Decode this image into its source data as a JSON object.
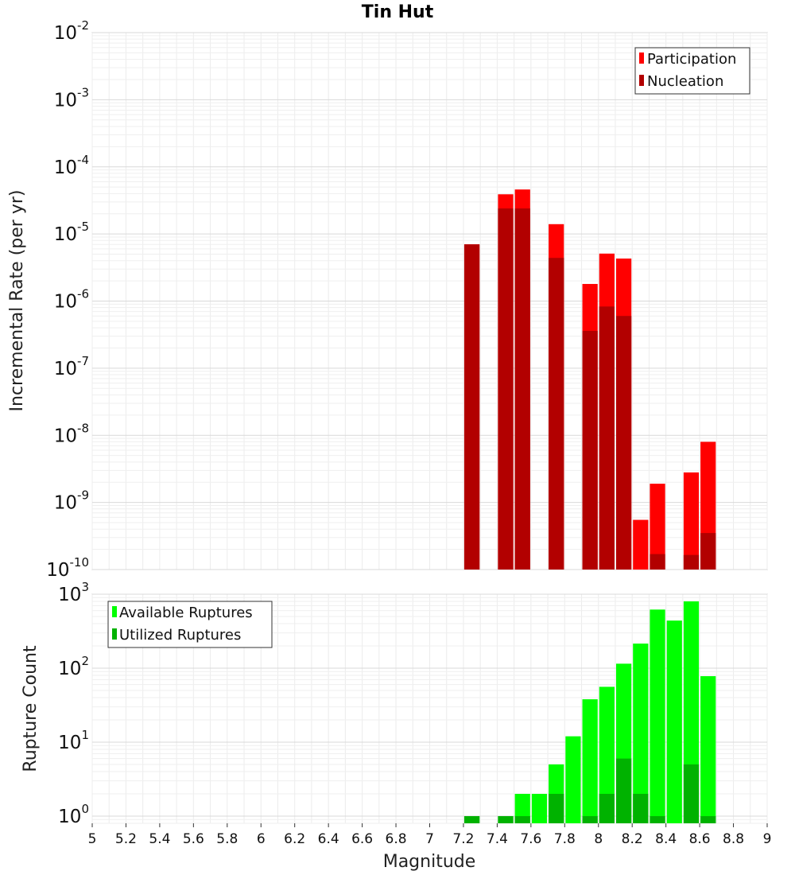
{
  "chart_data": [
    {
      "type": "bar",
      "title": "Tin Hut",
      "xlabel": "Magnitude",
      "ylabel": "Incremental Rate (per yr)",
      "yscale": "log",
      "ylim": [
        1e-10,
        0.01
      ],
      "xlim": [
        5,
        9
      ],
      "grid": true,
      "legend_position": "top-right",
      "y_ticks": [
        {
          "base": "10",
          "exp": "-2",
          "value": 0.01
        },
        {
          "base": "10",
          "exp": "-3",
          "value": 0.001
        },
        {
          "base": "10",
          "exp": "-4",
          "value": 0.0001
        },
        {
          "base": "10",
          "exp": "-5",
          "value": 1e-05
        },
        {
          "base": "10",
          "exp": "-6",
          "value": 1e-06
        },
        {
          "base": "10",
          "exp": "-7",
          "value": 1e-07
        },
        {
          "base": "10",
          "exp": "-8",
          "value": 1e-08
        },
        {
          "base": "10",
          "exp": "-9",
          "value": 1e-09
        },
        {
          "base": "10",
          "exp": "-10",
          "value": 1e-10
        }
      ],
      "series": [
        {
          "name": "Participation",
          "color": "#ff0000",
          "x": [
            7.25,
            7.45,
            7.55,
            7.75,
            7.95,
            8.05,
            8.15,
            8.25,
            8.35,
            8.55,
            8.65
          ],
          "values": [
            7e-06,
            3.9e-05,
            4.6e-05,
            1.4e-05,
            1.8e-06,
            5.1e-06,
            4.3e-06,
            5.5e-10,
            1.9e-09,
            2.8e-09,
            8e-09
          ]
        },
        {
          "name": "Nucleation",
          "color": "#b20000",
          "x": [
            7.25,
            7.45,
            7.55,
            7.75,
            7.95,
            8.05,
            8.15,
            8.35,
            8.55,
            8.65
          ],
          "values": [
            7e-06,
            2.4e-05,
            2.4e-05,
            4.4e-06,
            3.6e-07,
            8.3e-07,
            6e-07,
            1.7e-10,
            1.65e-10,
            3.5e-10
          ]
        }
      ]
    },
    {
      "type": "bar",
      "xlabel": "Magnitude",
      "ylabel": "Rupture Count",
      "yscale": "log",
      "ylim": [
        0.8,
        1000
      ],
      "xlim": [
        5,
        9
      ],
      "grid": true,
      "legend_position": "top-left",
      "x_ticks": [
        "5",
        "5.2",
        "5.4",
        "5.6",
        "5.8",
        "6",
        "6.2",
        "6.4",
        "6.6",
        "6.8",
        "7",
        "7.2",
        "7.4",
        "7.6",
        "7.8",
        "8",
        "8.2",
        "8.4",
        "8.6",
        "8.8",
        "9"
      ],
      "y_ticks": [
        {
          "base": "10",
          "exp": "3",
          "value": 1000
        },
        {
          "base": "10",
          "exp": "2",
          "value": 100
        },
        {
          "base": "10",
          "exp": "1",
          "value": 10
        },
        {
          "base": "10",
          "exp": "0",
          "value": 1
        }
      ],
      "series": [
        {
          "name": "Available Ruptures",
          "color": "#00ff00",
          "x": [
            7.25,
            7.45,
            7.55,
            7.65,
            7.75,
            7.85,
            7.95,
            8.05,
            8.15,
            8.25,
            8.35,
            8.45,
            8.55,
            8.65
          ],
          "values": [
            1,
            1,
            2,
            2,
            5,
            12,
            38,
            56,
            115,
            215,
            620,
            440,
            800,
            78
          ]
        },
        {
          "name": "Utilized Ruptures",
          "color": "#00b200",
          "x": [
            7.25,
            7.45,
            7.55,
            7.75,
            7.95,
            8.05,
            8.15,
            8.25,
            8.35,
            8.55,
            8.65
          ],
          "values": [
            1,
            1,
            1,
            2,
            1,
            2,
            6,
            2,
            1,
            5,
            1
          ]
        }
      ]
    }
  ]
}
